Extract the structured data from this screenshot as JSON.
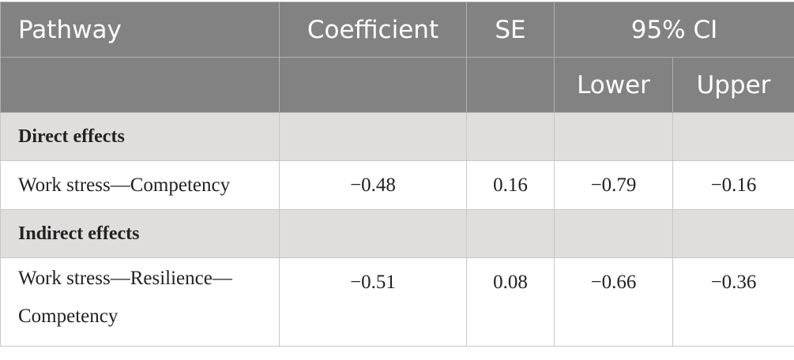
{
  "header": {
    "pathway": "Pathway",
    "coefficient": "Coefficient",
    "se": "SE",
    "ci": "95% CI",
    "lower": "Lower",
    "upper": "Upper"
  },
  "sections": {
    "direct": "Direct effects",
    "indirect": "Indirect effects"
  },
  "rows": [
    {
      "pathway": "Work stress—Competency",
      "coefficient": "−0.48",
      "se": "0.16",
      "lower": "−0.79",
      "upper": "−0.16"
    },
    {
      "pathway_line1": "Work stress—Resilience—",
      "pathway_line2": "Competency",
      "coefficient": "−0.51",
      "se": "0.08",
      "lower": "−0.66",
      "upper": "−0.36"
    }
  ]
}
